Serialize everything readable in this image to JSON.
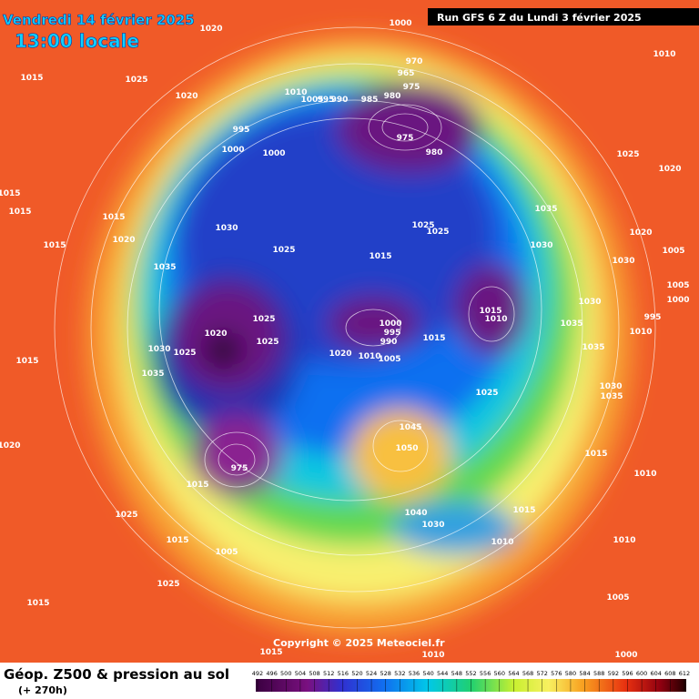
{
  "header": {
    "date": "Vendredi 14 février 2025",
    "time": "13:00 locale",
    "run": "Run GFS 6 Z du Lundi 3 février 2025"
  },
  "footer": {
    "title": "Géop. Z500 & pression au sol",
    "lead": "(+ 270h)",
    "copyright": "Copyright © 2025 Meteociel.fr"
  },
  "colorbar": {
    "ticks": [
      492,
      496,
      500,
      504,
      508,
      512,
      516,
      520,
      524,
      528,
      532,
      536,
      540,
      544,
      548,
      552,
      556,
      560,
      564,
      568,
      572,
      576,
      580,
      584,
      588,
      592,
      596,
      600,
      604,
      608,
      612
    ]
  },
  "isobar_labels": [
    1020,
    1000,
    1010,
    1015,
    1025,
    1020,
    1010,
    1005,
    995,
    990,
    985,
    980,
    975,
    970,
    965,
    995,
    1000,
    1000,
    975,
    980,
    1025,
    1020,
    1015,
    1015,
    1015,
    1020,
    1015,
    1030,
    1025,
    1015,
    1025,
    1025,
    1035,
    1030,
    1020,
    1005,
    1030,
    1035,
    1015,
    1010,
    1030,
    1005,
    1000,
    995,
    1010,
    1035,
    1035,
    1025,
    1020,
    1000,
    995,
    990,
    1025,
    1030,
    1025,
    1015,
    1005,
    1010,
    1020,
    1035,
    1015,
    1025,
    1030,
    1035,
    1045,
    1050,
    1015,
    1010,
    1020,
    975,
    1015,
    1025,
    1015,
    1005,
    1040,
    1030,
    1015,
    1010,
    1010,
    1025,
    1015,
    1005,
    1000,
    1015,
    1010
  ]
}
